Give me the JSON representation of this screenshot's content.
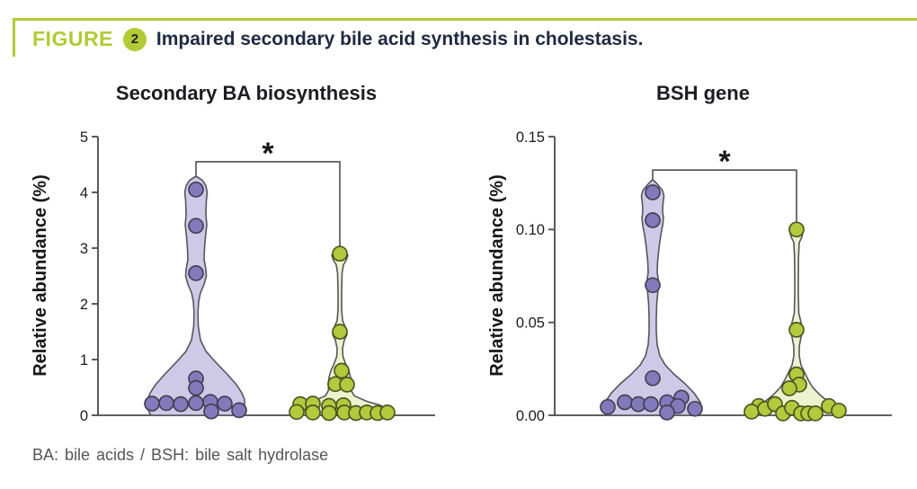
{
  "header": {
    "kicker": "FIGURE",
    "badge": "2",
    "title": "Impaired secondary bile acid synthesis in cholestasis."
  },
  "footnote": "BA: bile acids  /  BSH: bile salt hydrolase",
  "colors": {
    "accent_green": "#b2ca35",
    "header_text": "#202a42",
    "axis": "#4a4a4c",
    "violin_stroke": "#55555c",
    "bracket": "#4f4f4f",
    "star": "#1a1a1a",
    "tick_text": "#1c1c1c",
    "purple_fill": "#cfc9e8",
    "purple_dot": "#837abc",
    "purple_dot_stroke": "#454052",
    "green_fill": "#edf2cf",
    "green_dot": "#b2ca3b",
    "green_dot_stroke": "#4f5524",
    "footnote_text": "#55565a"
  },
  "chart_data": [
    {
      "type": "violin",
      "title": "Secondary BA biosynthesis",
      "ylabel": "Relative abundance (%)",
      "ylim": [
        0,
        5
      ],
      "yticks": [
        0,
        1,
        2,
        3,
        4,
        5
      ],
      "ytick_labels": [
        "0",
        "1",
        "2",
        "3",
        "4",
        "5"
      ],
      "grid": false,
      "significance": {
        "label": "*",
        "y": 4.55,
        "drop_left_to": 4.28,
        "drop_right_to": 2.97
      },
      "groups": [
        {
          "name": "group-1-purple",
          "fill": "#cfc9e8",
          "dot_fill": "#837abc",
          "dot_stroke": "#454052",
          "points": [
            {
              "v": 4.05,
              "dx": 0
            },
            {
              "v": 3.4,
              "dx": 0
            },
            {
              "v": 2.55,
              "dx": 0
            },
            {
              "v": 0.66,
              "dx": 0
            },
            {
              "v": 0.49,
              "dx": 0
            },
            {
              "v": 0.21,
              "dx": -49
            },
            {
              "v": 0.22,
              "dx": -33
            },
            {
              "v": 0.2,
              "dx": -17
            },
            {
              "v": 0.22,
              "dx": 0
            },
            {
              "v": 0.24,
              "dx": 16
            },
            {
              "v": 0.21,
              "dx": 32
            },
            {
              "v": 0.07,
              "dx": 17
            },
            {
              "v": 0.09,
              "dx": 48
            }
          ],
          "profile": [
            [
              4.28,
              1
            ],
            [
              4.22,
              7
            ],
            [
              4.12,
              11
            ],
            [
              4.0,
              12.5
            ],
            [
              3.85,
              11.5
            ],
            [
              3.6,
              11
            ],
            [
              3.42,
              12
            ],
            [
              3.2,
              10.5
            ],
            [
              3.0,
              9.5
            ],
            [
              2.8,
              9
            ],
            [
              2.62,
              11
            ],
            [
              2.5,
              11.5
            ],
            [
              2.35,
              9
            ],
            [
              2.2,
              5
            ],
            [
              2.05,
              3
            ],
            [
              1.85,
              2.2
            ],
            [
              1.6,
              2.5
            ],
            [
              1.35,
              5
            ],
            [
              1.15,
              11
            ],
            [
              0.95,
              22
            ],
            [
              0.75,
              34
            ],
            [
              0.55,
              45
            ],
            [
              0.4,
              51
            ],
            [
              0.28,
              54
            ],
            [
              0.15,
              54
            ],
            [
              0.05,
              52
            ],
            [
              0.0,
              50
            ]
          ]
        },
        {
          "name": "group-2-green",
          "fill": "#edf2cf",
          "dot_fill": "#b2ca3b",
          "dot_stroke": "#4f5524",
          "points": [
            {
              "v": 2.9,
              "dx": 0
            },
            {
              "v": 1.5,
              "dx": 0
            },
            {
              "v": 0.8,
              "dx": 2
            },
            {
              "v": 0.56,
              "dx": -5
            },
            {
              "v": 0.55,
              "dx": 8
            },
            {
              "v": 0.2,
              "dx": -44
            },
            {
              "v": 0.21,
              "dx": -30
            },
            {
              "v": 0.17,
              "dx": -12
            },
            {
              "v": 0.18,
              "dx": 4
            },
            {
              "v": 0.06,
              "dx": -48
            },
            {
              "v": 0.05,
              "dx": -30
            },
            {
              "v": 0.04,
              "dx": -12
            },
            {
              "v": 0.05,
              "dx": 5
            },
            {
              "v": 0.04,
              "dx": 18
            },
            {
              "v": 0.05,
              "dx": 30
            },
            {
              "v": 0.04,
              "dx": 42
            },
            {
              "v": 0.05,
              "dx": 53
            }
          ],
          "profile": [
            [
              2.97,
              1
            ],
            [
              2.93,
              6
            ],
            [
              2.87,
              9
            ],
            [
              2.78,
              7
            ],
            [
              2.7,
              4
            ],
            [
              2.55,
              2.5
            ],
            [
              2.2,
              2
            ],
            [
              1.9,
              2
            ],
            [
              1.7,
              3
            ],
            [
              1.55,
              7
            ],
            [
              1.45,
              8
            ],
            [
              1.35,
              5
            ],
            [
              1.2,
              3
            ],
            [
              1.05,
              3.5
            ],
            [
              0.9,
              7
            ],
            [
              0.8,
              10
            ],
            [
              0.68,
              12
            ],
            [
              0.55,
              13
            ],
            [
              0.45,
              12.5
            ],
            [
              0.35,
              16
            ],
            [
              0.25,
              30
            ],
            [
              0.18,
              45
            ],
            [
              0.1,
              54
            ],
            [
              0.04,
              55
            ],
            [
              0.0,
              50
            ]
          ]
        }
      ]
    },
    {
      "type": "violin",
      "title": "BSH gene",
      "ylabel": "Relative abundance (%)",
      "ylim": [
        0,
        0.15
      ],
      "yticks": [
        0,
        0.05,
        0.1,
        0.15
      ],
      "ytick_labels": [
        "0.00",
        "0.05",
        "0.10",
        "0.15"
      ],
      "grid": false,
      "significance": {
        "label": "*",
        "y": 0.132,
        "drop_left_to": 0.1265,
        "drop_right_to": 0.103
      },
      "groups": [
        {
          "name": "group-1-purple",
          "fill": "#cfc9e8",
          "dot_fill": "#837abc",
          "dot_stroke": "#454052",
          "points": [
            {
              "v": 0.12,
              "dx": 0
            },
            {
              "v": 0.105,
              "dx": 0
            },
            {
              "v": 0.07,
              "dx": 0
            },
            {
              "v": 0.02,
              "dx": 0
            },
            {
              "v": 0.0095,
              "dx": 32
            },
            {
              "v": 0.007,
              "dx": -31
            },
            {
              "v": 0.0045,
              "dx": -50
            },
            {
              "v": 0.006,
              "dx": -16
            },
            {
              "v": 0.006,
              "dx": -2
            },
            {
              "v": 0.007,
              "dx": 16
            },
            {
              "v": 0.005,
              "dx": 28
            },
            {
              "v": 0.0015,
              "dx": 16
            },
            {
              "v": 0.0035,
              "dx": 47
            }
          ],
          "profile": [
            [
              0.1265,
              1
            ],
            [
              0.124,
              6
            ],
            [
              0.121,
              11
            ],
            [
              0.118,
              12.5
            ],
            [
              0.114,
              11.5
            ],
            [
              0.11,
              11
            ],
            [
              0.106,
              12
            ],
            [
              0.102,
              11
            ],
            [
              0.097,
              9
            ],
            [
              0.09,
              7
            ],
            [
              0.083,
              5.5
            ],
            [
              0.077,
              5
            ],
            [
              0.072,
              6.5
            ],
            [
              0.068,
              6
            ],
            [
              0.06,
              4.5
            ],
            [
              0.052,
              4
            ],
            [
              0.045,
              4
            ],
            [
              0.038,
              5
            ],
            [
              0.032,
              8
            ],
            [
              0.027,
              14
            ],
            [
              0.022,
              24
            ],
            [
              0.017,
              36
            ],
            [
              0.012,
              46
            ],
            [
              0.007,
              53
            ],
            [
              0.003,
              54
            ],
            [
              0.0,
              51
            ]
          ]
        },
        {
          "name": "group-2-green",
          "fill": "#edf2cf",
          "dot_fill": "#b2ca3b",
          "dot_stroke": "#4f5524",
          "points": [
            {
              "v": 0.1,
              "dx": 0
            },
            {
              "v": 0.046,
              "dx": 0
            },
            {
              "v": 0.022,
              "dx": 0
            },
            {
              "v": 0.0165,
              "dx": 3
            },
            {
              "v": 0.0145,
              "dx": -8
            },
            {
              "v": 0.005,
              "dx": -42
            },
            {
              "v": 0.002,
              "dx": -50
            },
            {
              "v": 0.0035,
              "dx": -35
            },
            {
              "v": 0.006,
              "dx": -24
            },
            {
              "v": 0.001,
              "dx": -15
            },
            {
              "v": 0.004,
              "dx": -5
            },
            {
              "v": 0.001,
              "dx": 5
            },
            {
              "v": 0.001,
              "dx": 13
            },
            {
              "v": 0.001,
              "dx": 21
            },
            {
              "v": 0.005,
              "dx": 36
            },
            {
              "v": 0.0025,
              "dx": 47
            }
          ],
          "profile": [
            [
              0.103,
              1
            ],
            [
              0.101,
              5
            ],
            [
              0.099,
              7.5
            ],
            [
              0.096,
              6
            ],
            [
              0.093,
              3
            ],
            [
              0.085,
              2.2
            ],
            [
              0.075,
              2
            ],
            [
              0.065,
              2
            ],
            [
              0.055,
              2.5
            ],
            [
              0.049,
              5.5
            ],
            [
              0.046,
              7
            ],
            [
              0.042,
              5
            ],
            [
              0.037,
              3
            ],
            [
              0.032,
              3
            ],
            [
              0.027,
              5
            ],
            [
              0.023,
              9
            ],
            [
              0.019,
              13
            ],
            [
              0.015,
              18
            ],
            [
              0.011,
              26
            ],
            [
              0.007,
              36
            ],
            [
              0.004,
              45
            ],
            [
              0.001,
              50
            ],
            [
              0.0,
              48
            ]
          ]
        }
      ]
    }
  ]
}
